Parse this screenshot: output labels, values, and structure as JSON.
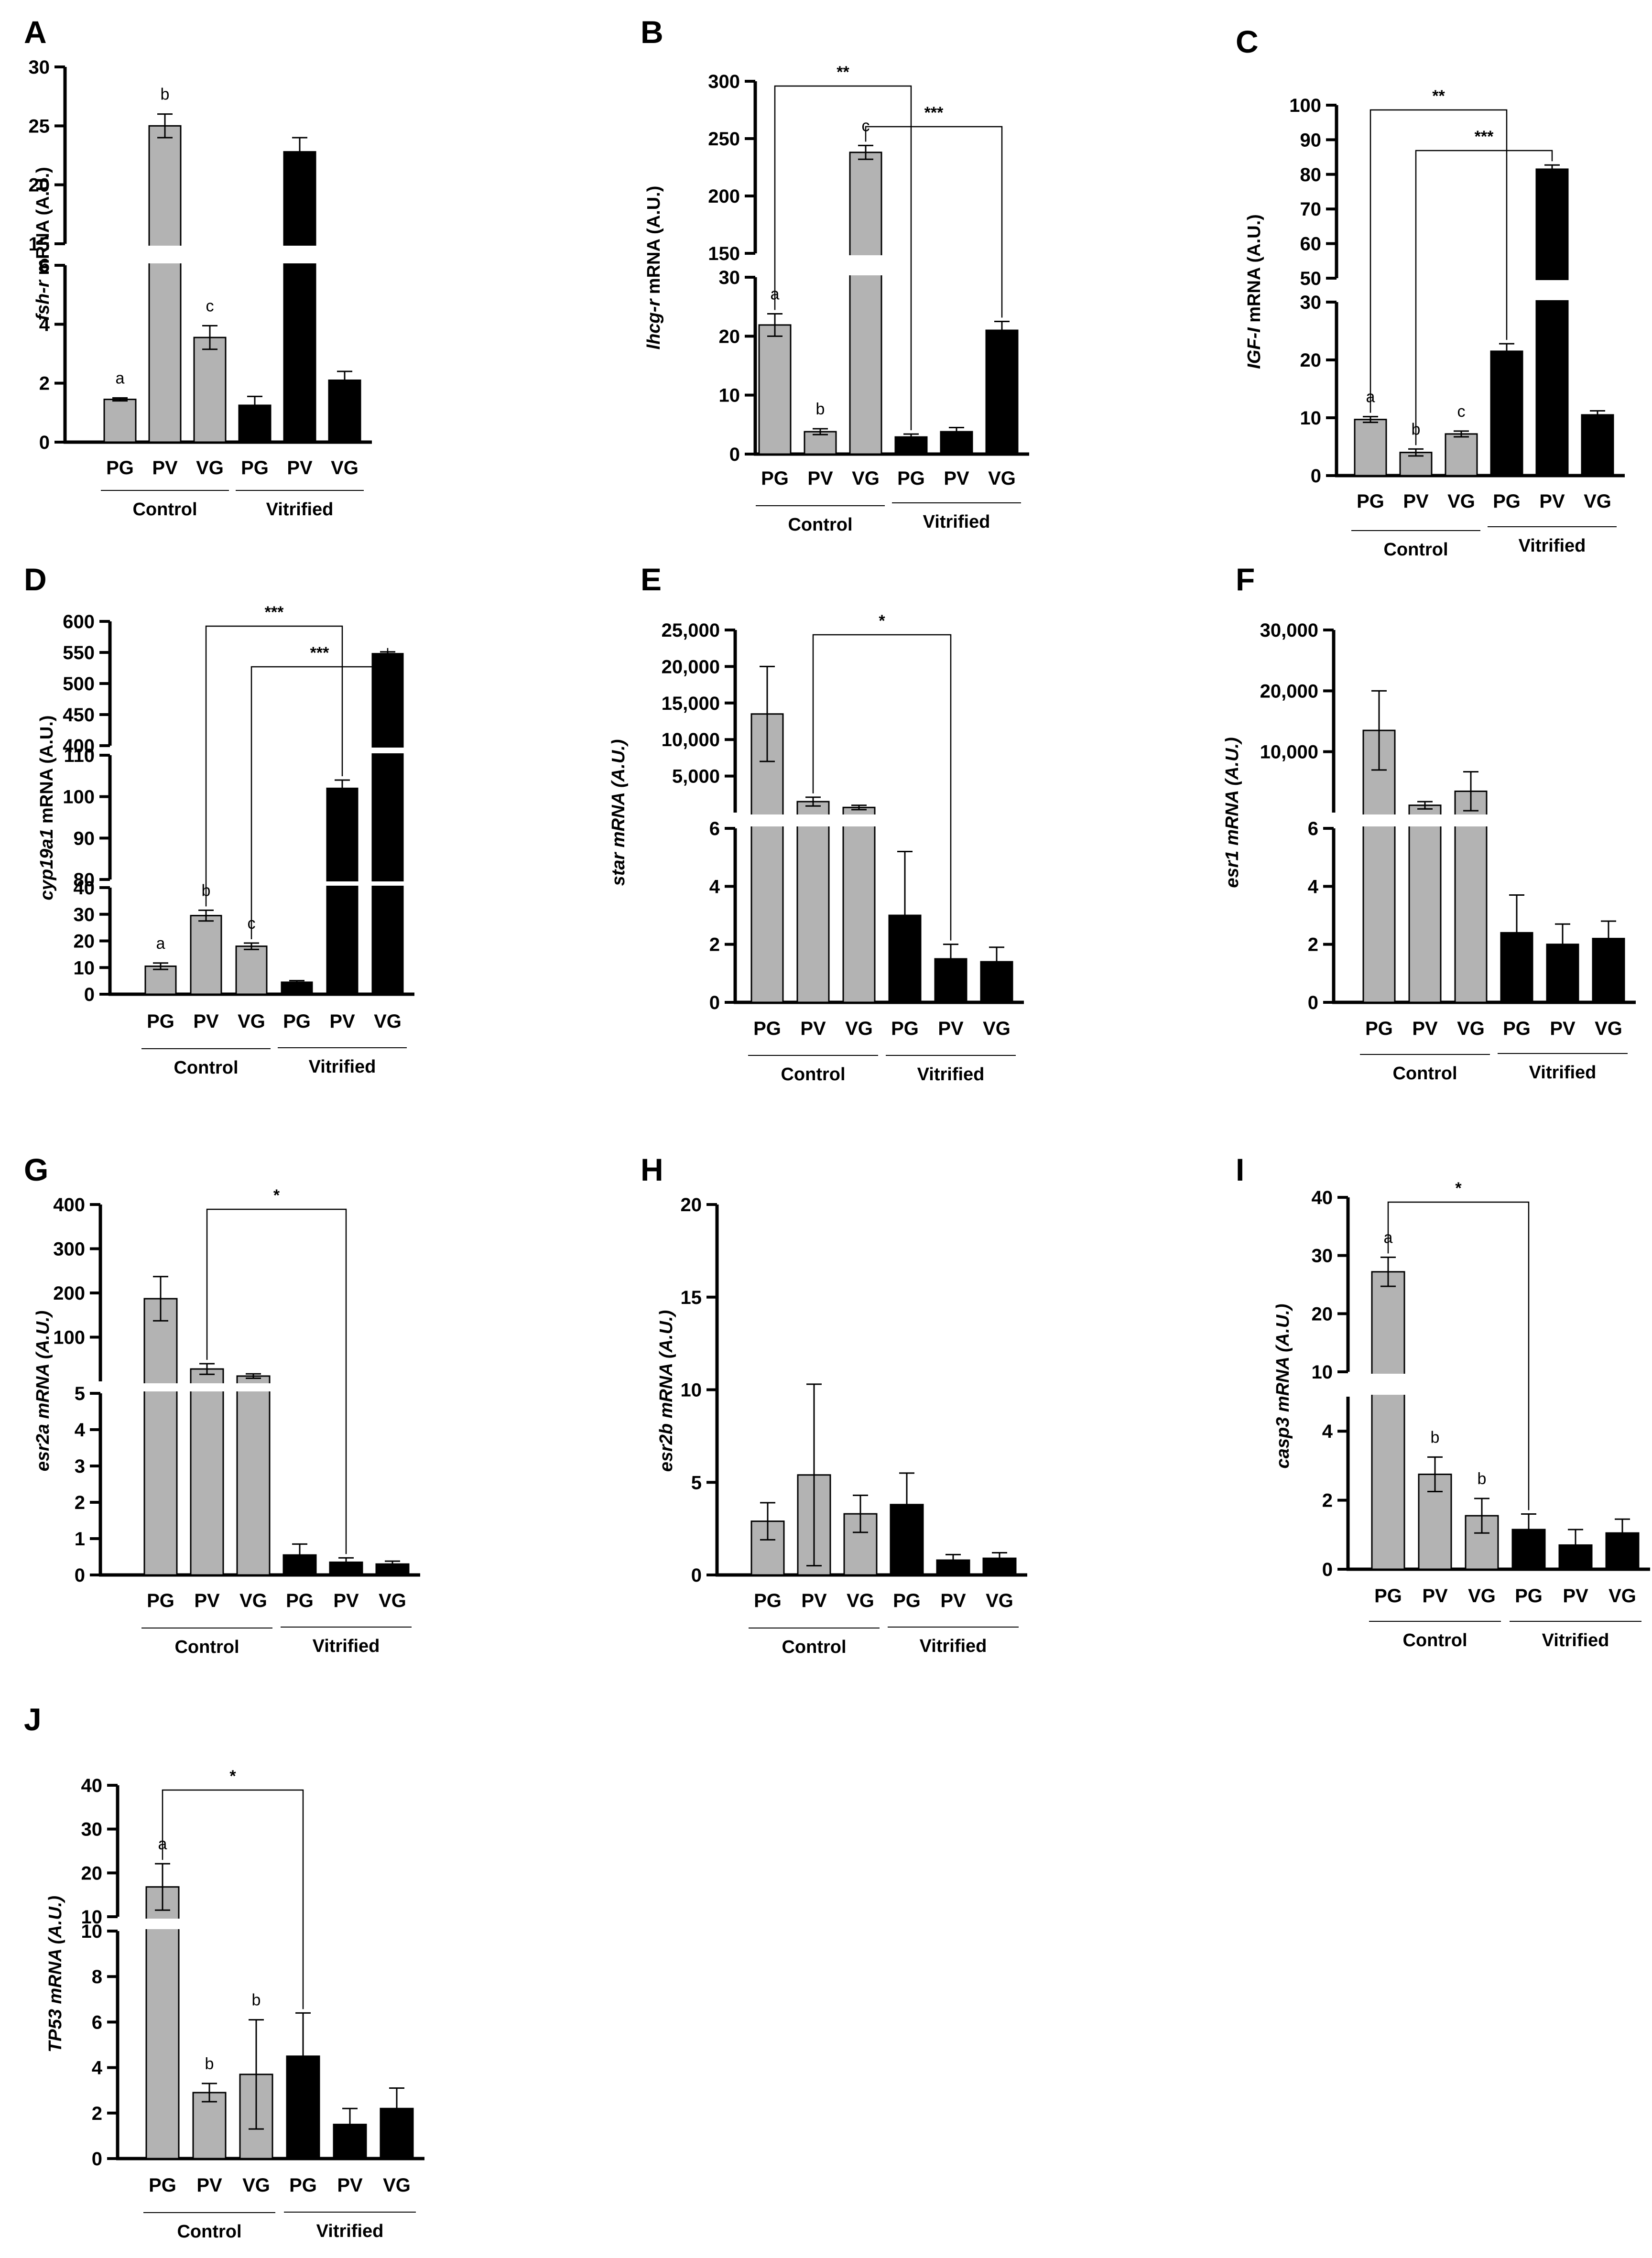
{
  "figure": {
    "categories": [
      "PG",
      "PV",
      "VG",
      "PG",
      "PV",
      "VG"
    ],
    "groups": [
      "Control",
      "Vitrified"
    ],
    "colors": {
      "control": "#b3b3b3",
      "vitrified": "#000000",
      "axis": "#000000"
    }
  },
  "chart_data": [
    {
      "panel": "A",
      "type": "bar",
      "ylabel": "fsh-r mRNA (A.U.)",
      "ylabel_italic_prefix": "fsh-r",
      "segments": [
        {
          "range": [
            0,
            6
          ],
          "ticks": [
            "0",
            "2",
            "4",
            "6"
          ]
        },
        {
          "range": [
            15,
            30
          ],
          "ticks": [
            "15",
            "20",
            "25",
            "30"
          ]
        }
      ],
      "values": [
        1.45,
        25.0,
        3.55,
        1.25,
        22.8,
        2.1
      ],
      "errors": [
        0.05,
        1.0,
        0.4,
        0.3,
        1.2,
        0.3
      ],
      "letters": [
        "a",
        "b",
        "c",
        "",
        "",
        ""
      ],
      "significance": []
    },
    {
      "panel": "B",
      "type": "bar",
      "ylabel": "lhcg-r mRNA (A.U.)",
      "ylabel_italic_prefix": "lhcg-r",
      "segments": [
        {
          "range": [
            0,
            30
          ],
          "ticks": [
            "0",
            "10",
            "20",
            "30"
          ]
        },
        {
          "range": [
            150,
            300
          ],
          "ticks": [
            "150",
            "200",
            "250",
            "300"
          ]
        }
      ],
      "values": [
        21.9,
        3.8,
        238,
        2.9,
        3.8,
        21.0
      ],
      "errors": [
        1.9,
        0.5,
        6,
        0.5,
        0.7,
        1.5
      ],
      "letters": [
        "a",
        "b",
        "c",
        "",
        "",
        ""
      ],
      "significance": [
        {
          "from": 0,
          "to": 3,
          "label": "**"
        },
        {
          "from": 2,
          "to": 5,
          "label": "***"
        }
      ]
    },
    {
      "panel": "C",
      "type": "bar",
      "ylabel": "IGF-I mRNA (A.U.)",
      "ylabel_italic_prefix": "IGF-I",
      "segments": [
        {
          "range": [
            0,
            30
          ],
          "ticks": [
            "0",
            "10",
            "20",
            "30"
          ]
        },
        {
          "range": [
            50,
            100
          ],
          "ticks": [
            "50",
            "60",
            "70",
            "80",
            "90",
            "100"
          ]
        }
      ],
      "values": [
        9.7,
        4.0,
        7.2,
        21.5,
        81.5,
        10.5
      ],
      "errors": [
        0.5,
        0.6,
        0.5,
        1.3,
        1.2,
        0.7
      ],
      "letters": [
        "a",
        "b",
        "c",
        "",
        "",
        ""
      ],
      "significance": [
        {
          "from": 0,
          "to": 3,
          "label": "**"
        },
        {
          "from": 1,
          "to": 4,
          "label": "***"
        }
      ]
    },
    {
      "panel": "D",
      "type": "bar",
      "ylabel": "cyp19a1 mRNA (A.U.)",
      "ylabel_italic_prefix": "cyp19a1",
      "segments": [
        {
          "range": [
            0,
            40
          ],
          "ticks": [
            "0",
            "10",
            "20",
            "30",
            "40"
          ]
        },
        {
          "range": [
            80,
            110
          ],
          "ticks": [
            "80",
            "90",
            "100",
            "110"
          ]
        },
        {
          "range": [
            400,
            600
          ],
          "ticks": [
            "400",
            "450",
            "500",
            "550",
            "600"
          ]
        }
      ],
      "values": [
        10.5,
        29.5,
        18.0,
        4.5,
        102,
        548
      ],
      "errors": [
        1.2,
        2.0,
        1.2,
        0.6,
        2.0,
        3.0
      ],
      "letters": [
        "a",
        "b",
        "c",
        "",
        "",
        ""
      ],
      "significance": [
        {
          "from": 1,
          "to": 4,
          "label": "***"
        },
        {
          "from": 2,
          "to": 5,
          "label": "***"
        }
      ]
    },
    {
      "panel": "E",
      "type": "bar",
      "ylabel": "star mRNA (A.U.)",
      "ylabel_italic_prefix": "star mRNA (A.U.)",
      "segments": [
        {
          "range": [
            0,
            6
          ],
          "ticks": [
            "0",
            "2",
            "4",
            "6"
          ]
        },
        {
          "range": [
            0,
            25000
          ],
          "ticks": [
            "5,000",
            "10,000",
            "15,000",
            "20,000",
            "25,000"
          ]
        }
      ],
      "values": [
        13500,
        1500,
        700,
        3.0,
        1.5,
        1.4
      ],
      "errors": [
        6500,
        600,
        300,
        2.2,
        0.5,
        0.5
      ],
      "letters": [
        "",
        "",
        "",
        "",
        "",
        ""
      ],
      "significance": [
        {
          "from": 1,
          "to": 4,
          "label": "*"
        }
      ]
    },
    {
      "panel": "F",
      "type": "bar",
      "ylabel": "esr1 mRNA (A.U.)",
      "ylabel_italic_prefix": "esr1 mRNA (A.U.)",
      "segments": [
        {
          "range": [
            0,
            6
          ],
          "ticks": [
            "0",
            "2",
            "4",
            "6"
          ]
        },
        {
          "range": [
            0,
            30000
          ],
          "ticks": [
            "10,000",
            "20,000",
            "30,000"
          ]
        }
      ],
      "values": [
        13500,
        1200,
        3500,
        2.4,
        2.0,
        2.2
      ],
      "errors": [
        6500,
        600,
        3200,
        1.3,
        0.7,
        0.6
      ],
      "letters": [
        "",
        "",
        "",
        "",
        "",
        ""
      ],
      "significance": []
    },
    {
      "panel": "G",
      "type": "bar",
      "ylabel": "esr2a mRNA (A.U.)",
      "ylabel_italic_prefix": "esr2a mRNA (A.U.)",
      "segments": [
        {
          "range": [
            0,
            5
          ],
          "ticks": [
            "0",
            "1",
            "2",
            "3",
            "4",
            "5"
          ]
        },
        {
          "range": [
            0,
            400
          ],
          "ticks": [
            "100",
            "200",
            "300",
            "400"
          ]
        }
      ],
      "values": [
        187,
        28,
        12,
        0.55,
        0.35,
        0.3
      ],
      "errors": [
        50,
        12,
        5,
        0.3,
        0.12,
        0.08
      ],
      "letters": [
        "",
        "",
        "",
        "",
        "",
        ""
      ],
      "significance": [
        {
          "from": 1,
          "to": 4,
          "label": "*"
        }
      ]
    },
    {
      "panel": "H",
      "type": "bar",
      "ylabel": "esr2b mRNA (A.U.)",
      "ylabel_italic_prefix": "esr2b mRNA (A.U.)",
      "segments": [
        {
          "range": [
            0,
            20
          ],
          "ticks": [
            "0",
            "5",
            "10",
            "15",
            "20"
          ]
        }
      ],
      "values": [
        2.9,
        5.4,
        3.3,
        3.8,
        0.8,
        0.9
      ],
      "errors": [
        1.0,
        4.9,
        1.0,
        1.7,
        0.3,
        0.3
      ],
      "letters": [
        "",
        "",
        "",
        "",
        "",
        ""
      ],
      "significance": []
    },
    {
      "panel": "I",
      "type": "bar",
      "ylabel": "casp3 mRNA (A.U.)",
      "ylabel_italic_prefix": "casp3 mRNA (A.U.)",
      "segments": [
        {
          "range": [
            0,
            5
          ],
          "ticks": [
            "0",
            "2",
            "4"
          ]
        },
        {
          "range": [
            10,
            40
          ],
          "ticks": [
            "10",
            "20",
            "30",
            "40"
          ]
        }
      ],
      "values": [
        27.2,
        2.75,
        1.55,
        1.15,
        0.7,
        1.05
      ],
      "errors": [
        2.5,
        0.5,
        0.5,
        0.45,
        0.45,
        0.4
      ],
      "letters": [
        "a",
        "b",
        "b",
        "",
        "",
        ""
      ],
      "significance": [
        {
          "from": 0,
          "to": 3,
          "label": "*"
        }
      ]
    },
    {
      "panel": "J",
      "type": "bar",
      "ylabel": "TP53 mRNA (A.U.)",
      "ylabel_italic_prefix": "TP53 mRNA (A.U.)",
      "segments": [
        {
          "range": [
            0,
            10
          ],
          "ticks": [
            "0",
            "2",
            "4",
            "6",
            "8",
            "10"
          ]
        },
        {
          "range": [
            10,
            40
          ],
          "ticks": [
            "10",
            "20",
            "30",
            "40"
          ]
        }
      ],
      "values": [
        16.8,
        2.9,
        3.7,
        4.5,
        1.5,
        2.2
      ],
      "errors": [
        5.3,
        0.4,
        2.4,
        1.9,
        0.7,
        0.9
      ],
      "letters": [
        "a",
        "b",
        "b",
        "",
        "",
        ""
      ],
      "significance": [
        {
          "from": 0,
          "to": 3,
          "label": "*"
        }
      ]
    }
  ]
}
